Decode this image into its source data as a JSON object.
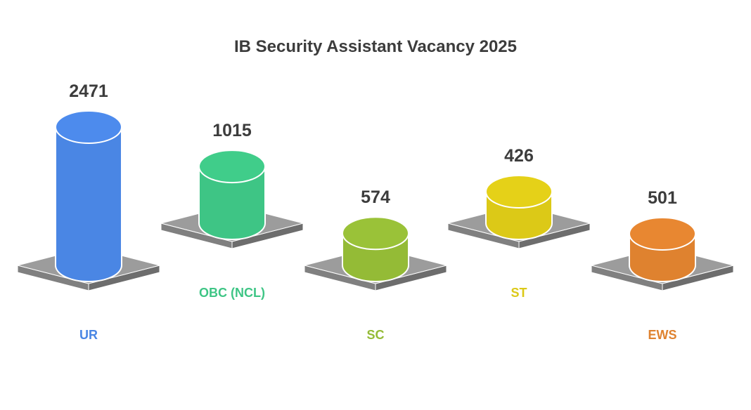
{
  "chart_data": {
    "type": "bar",
    "title": "IB Security Assistant Vacancy 2025",
    "categories": [
      "UR",
      "OBC (NCL)",
      "SC",
      "ST",
      "EWS"
    ],
    "values": [
      2471,
      1015,
      574,
      426,
      501
    ],
    "colors": [
      "#4a86e4",
      "#3ec585",
      "#94bb36",
      "#dcc917",
      "#df822f"
    ],
    "label_colors": [
      "#4a86e4",
      "#3ec585",
      "#94bb36",
      "#dcc917",
      "#df822f"
    ],
    "pedestal_color": "#9c9c9c",
    "legend": "none",
    "grid": false
  }
}
